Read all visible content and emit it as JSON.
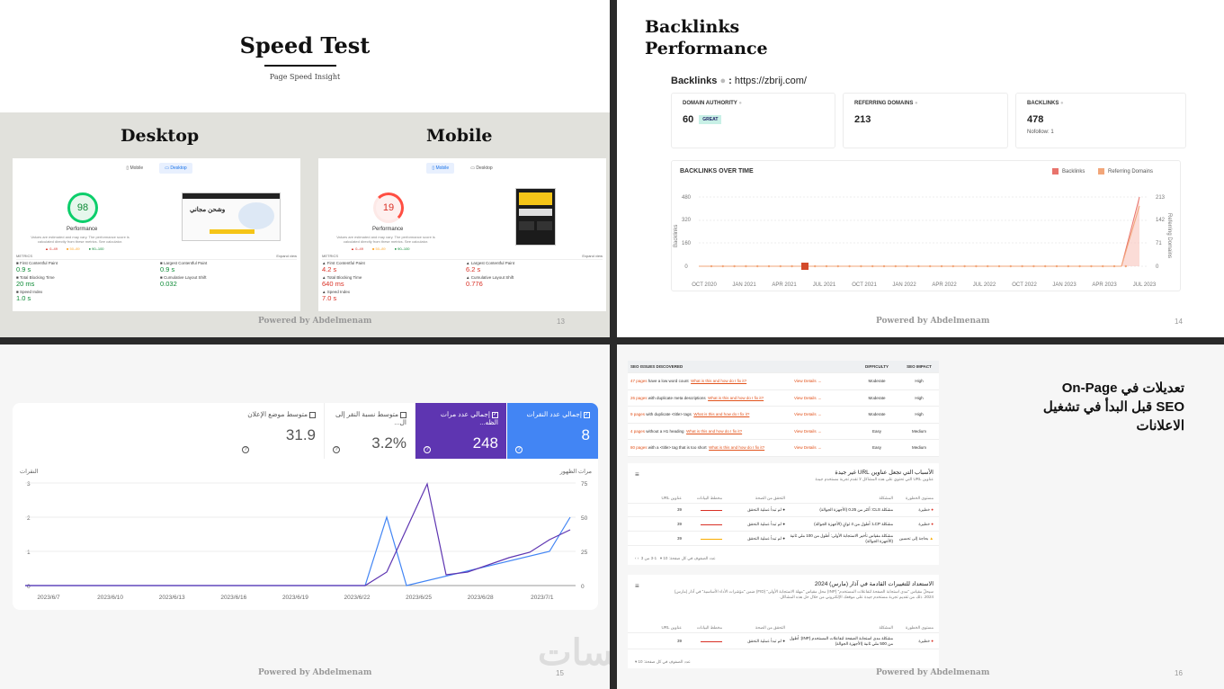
{
  "slide13": {
    "title": "Speed Test",
    "subtitle": "Page Speed Insight",
    "desktop": "Desktop",
    "mobile": "Mobile",
    "footer": "Powered by Abdelmenam",
    "page": "13",
    "tab_mobile": "Mobile",
    "tab_desktop": "Desktop",
    "performance": "Performance",
    "note": "Values are estimated and may vary. The performance score is calculated directly from these metrics. See calculator.",
    "legend": [
      "0–49",
      "50–89",
      "90–100"
    ],
    "metrics_label": "METRICS",
    "expand": "Expand view",
    "desktop_report": {
      "score": "98",
      "metrics": [
        {
          "name": "First Contentful Paint",
          "value": "0.9 s"
        },
        {
          "name": "Largest Contentful Paint",
          "value": "0.9 s"
        },
        {
          "name": "Total Blocking Time",
          "value": "20 ms"
        },
        {
          "name": "Cumulative Layout Shift",
          "value": "0.032"
        },
        {
          "name": "Speed Index",
          "value": "1.0 s"
        }
      ]
    },
    "mobile_report": {
      "score": "19",
      "metrics": [
        {
          "name": "First Contentful Paint",
          "value": "4.2 s"
        },
        {
          "name": "Largest Contentful Paint",
          "value": "6.2 s"
        },
        {
          "name": "Total Blocking Time",
          "value": "640 ms"
        },
        {
          "name": "Cumulative Layout Shift",
          "value": "0.776"
        },
        {
          "name": "Speed Index",
          "value": "7.0 s"
        }
      ]
    },
    "thumb_text": "وشحن مجاني"
  },
  "slide14": {
    "title_line1": "Backlinks",
    "title_line2": "Performance",
    "backlinks_label": "Backlinks",
    "url": "https://zbrij.com/",
    "stats": [
      {
        "label": "DOMAIN AUTHORITY",
        "value": "60",
        "badge": "GREAT"
      },
      {
        "label": "REFERRING DOMAINS",
        "value": "213"
      },
      {
        "label": "BACKLINKS",
        "value": "478",
        "note": "Nofollow: 1"
      }
    ],
    "chart_title": "BACKLINKS OVER TIME",
    "legend_backlinks": "Backlinks",
    "legend_domains": "Referring Domains",
    "yleft_label": "Backlinks",
    "yright_label": "Referring Domains",
    "yleft_ticks": [
      "480",
      "320",
      "160",
      "0"
    ],
    "yright_ticks": [
      "213",
      "142",
      "71",
      "0"
    ],
    "xticks": [
      "OCT 2020",
      "JAN 2021",
      "APR 2021",
      "JUL 2021",
      "OCT 2021",
      "JAN 2022",
      "APR 2022",
      "JUL 2022",
      "OCT 2022",
      "JAN 2023",
      "APR 2023",
      "JUL 2023"
    ],
    "colors": {
      "backlinks": "#e8736c",
      "domains": "#f2a679"
    },
    "footer": "Powered by Abdelmenam",
    "page": "14"
  },
  "slide15": {
    "footer": "Powered by Abdelmenam",
    "page": "15",
    "tiles": [
      {
        "label": "إجمالي عدد النقرات",
        "value": "8",
        "color": "#4285f4"
      },
      {
        "label": "إجمالي عدد مرات الظه...",
        "value": "248",
        "color": "#5e35b1"
      },
      {
        "label": "متوسط نسبة النقر إلى ال...",
        "value": "3.2%"
      },
      {
        "label": "متوسط موضع الإعلان",
        "value": "31.9"
      }
    ],
    "y_left_title": "النقرات",
    "y_right_title": "مرات الظهور",
    "y_left_ticks": [
      "3",
      "2",
      "1",
      "0"
    ],
    "y_right_ticks": [
      "75",
      "50",
      "25",
      "0"
    ],
    "x_ticks": [
      "2023/6/7",
      "2023/6/10",
      "2023/6/13",
      "2023/6/16",
      "2023/6/19",
      "2023/6/22",
      "2023/6/25",
      "2023/6/28",
      "2023/7/1"
    ]
  },
  "slide16": {
    "footer": "Powered by Abdelmenam",
    "page": "16",
    "title_line1": "تعديلات في On-Page",
    "title_line2": "SEO قبل البدأ في تشغيل",
    "title_line3": "الاعلانات",
    "issues_header": [
      "SEO ISSUES DISCOVERED",
      "",
      "DIFFICULTY",
      "SEO IMPACT"
    ],
    "issues": [
      {
        "count": "47 pages",
        "text": "have a low word count",
        "link": "What is this and how do I fix it?",
        "difficulty": "Moderate",
        "impact": "High"
      },
      {
        "count": "26 pages",
        "text": "with duplicate meta descriptions",
        "link": "What is this and how do I fix it?",
        "difficulty": "Moderate",
        "impact": "High"
      },
      {
        "count": "9 pages",
        "text": "with duplicate <title> tags",
        "link": "What is this and how do I fix it?",
        "difficulty": "Moderate",
        "impact": "High"
      },
      {
        "count": "4 pages",
        "text": "without a H1 heading",
        "link": "What is this and how do I fix it?",
        "difficulty": "Easy",
        "impact": "Medium"
      },
      {
        "count": "80 pages",
        "text": "with a <title> tag that is too short",
        "link": "What is this and how do I fix it?",
        "difficulty": "Easy",
        "impact": "Medium"
      }
    ],
    "view_details": "View Details",
    "cwv1_title": "الأسباب التي تجعل عناوين URL غير جيدة",
    "cwv1_sub": "عناوين URL التي تحتوي على هذه المشاكل لا تقدم تجربة مستخدم جيدة",
    "cwv_cols": [
      "مستوى الخطورة",
      "المشكلة",
      "التحقق من الصحة",
      "مخطط البيانات",
      "عناوين URL"
    ],
    "cwv1_rows": [
      {
        "sev": "خطيرة",
        "issue": "مشكلة CLS: أكثر من 0.25 (الأجهزة الجوالة)",
        "val": "لم تبدأ عملية التحقق",
        "count": "39"
      },
      {
        "sev": "خطيرة",
        "issue": "مشكلة LCP: أطول من 4 ثوانٍ (الأجهزة الجوالة)",
        "val": "لم تبدأ عملية التحقق",
        "count": "39"
      },
      {
        "sev": "بحاجة إلى تحسين",
        "issue": "مشكلة مقياس تأخير الاستجابة الأولى: أطول من 100 ملي ثانية (الأجهزة الجوالة)",
        "val": "لم تبدأ عملية التحقق",
        "count": "39"
      }
    ],
    "pager": "عدد الصفوف في كل صفحة:",
    "pager_count": "10",
    "pager_range": "1-3 من 3",
    "cwv2_title": "الاستعداد للتغييرات القادمة في آذار (مارس) 2024",
    "cwv2_sub": "سيحلّ مقياس \"مدى استجابة الصفحة لتفاعلات المستخدم\" (INP) محل مقياس \"مهلة الاستجابة الأولى\" (FID) ضمن \"مؤشرات الأداء الأساسية\" في آذار (مارس) 2024. ذلك من تقديم تجربة مستخدم جيدة على موقعك الإلكتروني من خلال حل هذه المشاكل.",
    "cwv2_row": {
      "sev": "خطيرة",
      "issue": "مشكلة مدى استجابة الصفحة لتفاعلات المستخدم (INP): أطول من 500 ملي ثانية (الأجهزة الجوالة)",
      "val": "لم تبدأ عملية التحقق",
      "count": "39"
    }
  },
  "watermark": "خمسات"
}
